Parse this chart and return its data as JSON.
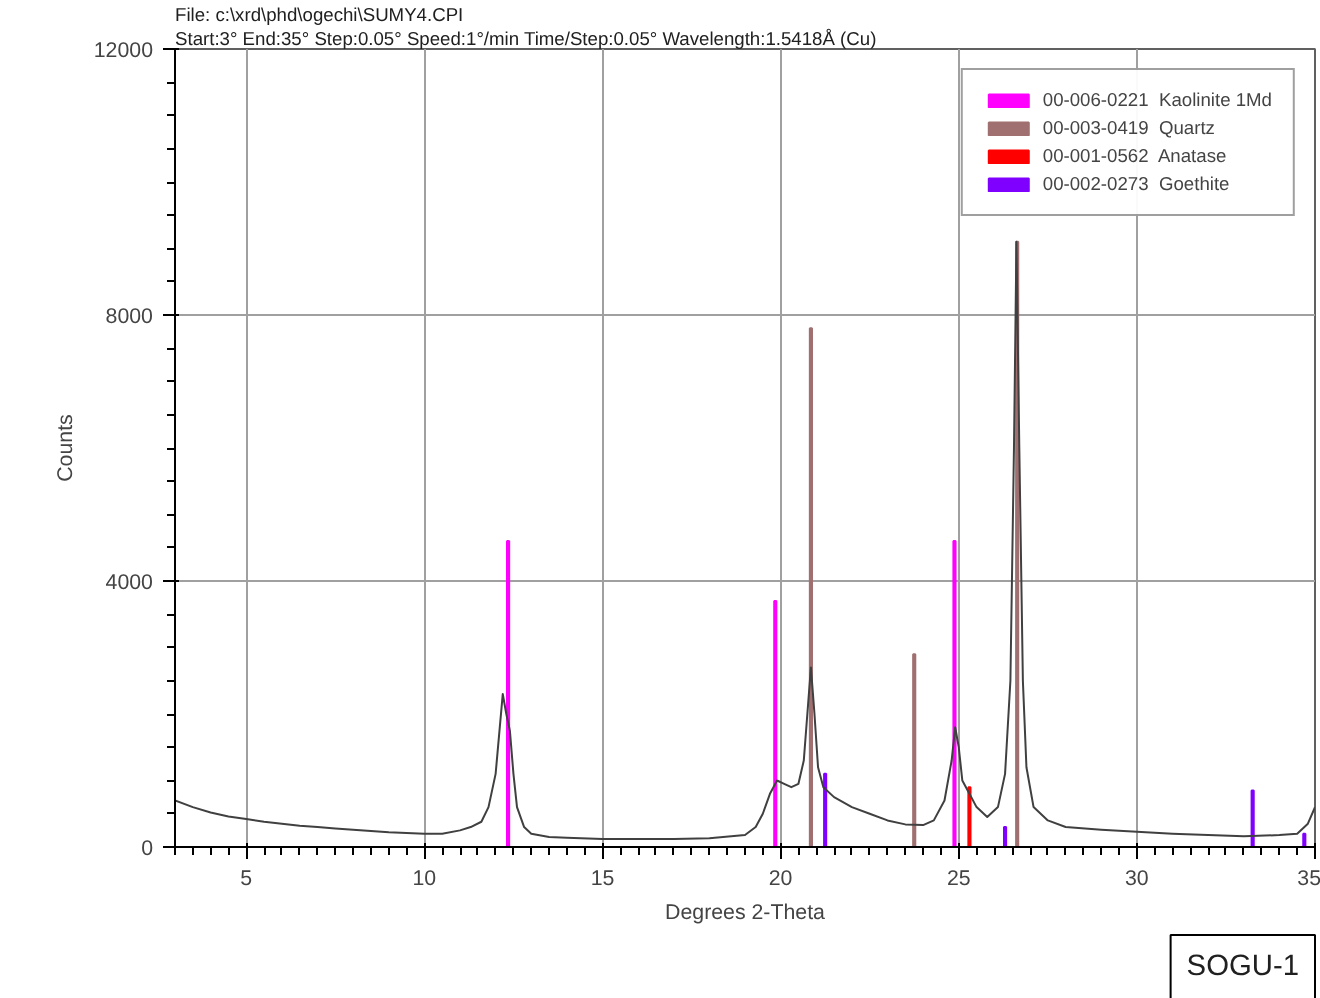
{
  "chart_data": {
    "type": "line",
    "xlabel": "Degrees 2-Theta",
    "ylabel": "Counts",
    "xlim": [
      3,
      35
    ],
    "ylim": [
      0,
      12000
    ],
    "xticks": [
      5,
      10,
      15,
      20,
      25,
      30,
      35
    ],
    "yticks": [
      0,
      4000,
      8000,
      12000
    ],
    "grid": true,
    "legend": "top right",
    "annotations": [
      "File: c:\\xrd\\phd\\ogechi\\SUMY4.CPI",
      "Start:3° End:35° Step:0.05° Speed:1°/min Time/Step:0.05° Wavelength:1.5418Å (Cu)",
      "SOGU-1"
    ],
    "series": [
      {
        "color": "#404040",
        "x": [
          3,
          3.5,
          4,
          4.5,
          5,
          5.5,
          6,
          6.5,
          7,
          7.5,
          8,
          8.5,
          9,
          9.5,
          10,
          10.5,
          11,
          11.3,
          11.6,
          11.8,
          12,
          12.1,
          12.2,
          12.3,
          12.4,
          12.5,
          12.6,
          12.8,
          13,
          13.5,
          14,
          15,
          16,
          17,
          18,
          19,
          19.3,
          19.5,
          19.7,
          19.9,
          20.1,
          20.3,
          20.5,
          20.65,
          20.75,
          20.85,
          20.95,
          21.05,
          21.2,
          21.5,
          22,
          22.5,
          23,
          23.5,
          24,
          24.3,
          24.6,
          24.8,
          24.9,
          25,
          25.1,
          25.3,
          25.5,
          25.8,
          26.1,
          26.3,
          26.45,
          26.55,
          26.62,
          26.7,
          26.8,
          26.9,
          27.1,
          27.5,
          28,
          29,
          30,
          31,
          32,
          33,
          34,
          34.5,
          34.8,
          35
        ],
        "values": [
          700,
          600,
          520,
          460,
          420,
          380,
          350,
          320,
          300,
          280,
          260,
          240,
          220,
          210,
          200,
          200,
          250,
          300,
          380,
          600,
          1100,
          1700,
          2300,
          2000,
          1750,
          1100,
          600,
          300,
          200,
          150,
          140,
          120,
          120,
          120,
          130,
          180,
          300,
          500,
          800,
          1000,
          950,
          900,
          950,
          1300,
          2000,
          2700,
          2000,
          1200,
          900,
          750,
          600,
          500,
          400,
          340,
          330,
          400,
          700,
          1300,
          1800,
          1500,
          1000,
          800,
          600,
          450,
          600,
          1100,
          2500,
          6000,
          9100,
          6000,
          2500,
          1200,
          600,
          400,
          300,
          260,
          230,
          200,
          180,
          160,
          180,
          200,
          350,
          600
        ]
      },
      {
        "type": "bar",
        "name": "00-006-0221  Kaolinite 1Md",
        "color": "#ff00ff",
        "x": [
          12.35,
          19.85,
          24.88
        ],
        "values": [
          4600,
          3700,
          4600
        ]
      },
      {
        "type": "bar",
        "name": "00-003-0419  Quartz",
        "color": "#a07070",
        "x": [
          20.85,
          23.75,
          26.64
        ],
        "values": [
          7800,
          2900,
          9100
        ]
      },
      {
        "type": "bar",
        "name": "00-001-0562  Anatase",
        "color": "#ff0000",
        "x": [
          25.3
        ],
        "values": [
          900
        ]
      },
      {
        "type": "bar",
        "name": "00-002-0273  Goethite",
        "color": "#8000ff",
        "x": [
          21.25,
          26.3,
          33.25,
          34.7
        ],
        "values": [
          1100,
          300,
          850,
          200
        ]
      }
    ]
  }
}
